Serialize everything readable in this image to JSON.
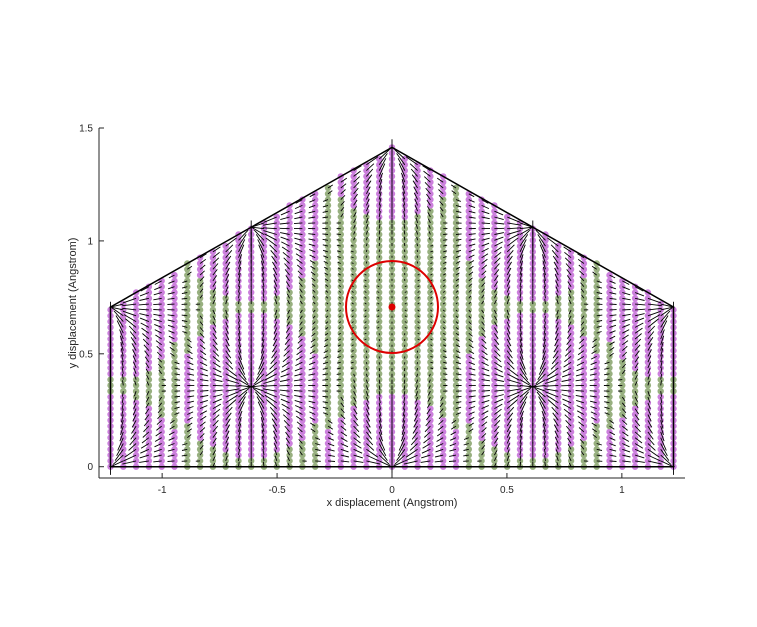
{
  "chart_data": {
    "type": "scatter",
    "title": "",
    "xlabel": "x displacement (Angstrom)",
    "ylabel": "y displacement (Angstrom)",
    "xlim": [
      -1.2747,
      1.2747
    ],
    "ylim": [
      -0.05,
      1.5
    ],
    "xticks": [
      -1,
      -0.5,
      0,
      0.5,
      1
    ],
    "xtick_labels": [
      "-1",
      "-0.5",
      "0",
      "0.5",
      "1"
    ],
    "yticks": [
      0,
      0.5,
      1,
      1.5
    ],
    "ytick_labels": [
      "0",
      "0.5",
      "1",
      "1.5"
    ],
    "grid": false,
    "legend": "none",
    "boundary_polygon": [
      [
        -1.2247,
        0
      ],
      [
        1.2247,
        0
      ],
      [
        1.2247,
        0.7071
      ],
      [
        0,
        1.4142
      ],
      [
        -1.2247,
        0.7071
      ],
      [
        -1.2247,
        0
      ]
    ],
    "grid_points": {
      "x_columns": 45,
      "y_rows": 56,
      "x_range": [
        -1.2247,
        1.2247
      ],
      "y_range": [
        0,
        1.4142
      ]
    },
    "sources": [
      [
        -1.2247,
        0
      ],
      [
        0,
        0
      ],
      [
        1.2247,
        0
      ],
      [
        -0.6124,
        0.3536
      ],
      [
        0.6124,
        0.3536
      ],
      [
        -1.2247,
        0.7071
      ],
      [
        1.2247,
        0.7071
      ],
      [
        -0.6124,
        1.0607
      ],
      [
        0.6124,
        1.0607
      ],
      [
        0,
        1.4142
      ]
    ],
    "highlight_point": {
      "x": 0,
      "y": 0.7071
    },
    "highlight_circle": {
      "cx": 0,
      "cy": 0.7071,
      "r": 0.2
    },
    "colors": {
      "point_green": "#98b080",
      "point_purple": "#cc80dd",
      "arrow": "#000000",
      "highlight": "#dd0000",
      "boundary": "#000000",
      "axis": "#262626"
    }
  }
}
